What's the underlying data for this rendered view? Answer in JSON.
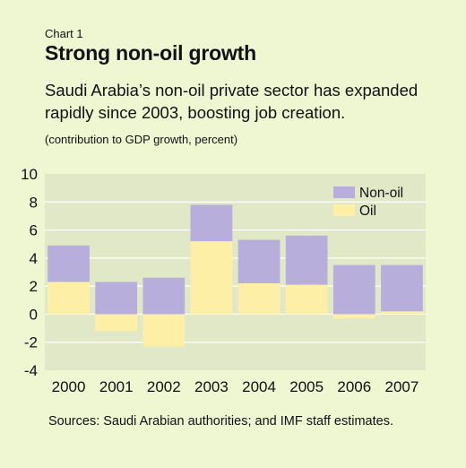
{
  "header": {
    "chart_number": "Chart 1",
    "title": "Strong non-oil growth",
    "subtitle": "Saudi Arabia’s non-oil private sector has expanded rapidly since 2003, boosting job creation.",
    "unit_note": "(contribution to GDP growth, percent)"
  },
  "footer": {
    "sources": "Sources: Saudi Arabian authorities; and IMF staff estimates."
  },
  "chart_data": {
    "type": "bar",
    "stacked": true,
    "categories": [
      "2000",
      "2001",
      "2002",
      "2003",
      "2004",
      "2005",
      "2006",
      "2007"
    ],
    "series": [
      {
        "name": "Oil",
        "values": [
          2.3,
          -1.2,
          -2.3,
          5.2,
          2.2,
          2.1,
          -0.3,
          0.2
        ],
        "color": "#fdf0a6"
      },
      {
        "name": "Non-oil",
        "values": [
          2.6,
          2.3,
          2.6,
          2.6,
          3.1,
          3.5,
          3.5,
          3.3
        ],
        "color": "#b7aedb"
      }
    ],
    "legend_order": [
      "Non-oil",
      "Oil"
    ],
    "legend_position": "top-right",
    "ylim": [
      -4,
      10
    ],
    "yticks": [
      10,
      8,
      6,
      4,
      2,
      0,
      -2,
      -4
    ],
    "grid": true,
    "colors": {
      "plot_background": "#e0e8c8",
      "grid": "#ffffff",
      "background": "#eef6d2"
    }
  }
}
